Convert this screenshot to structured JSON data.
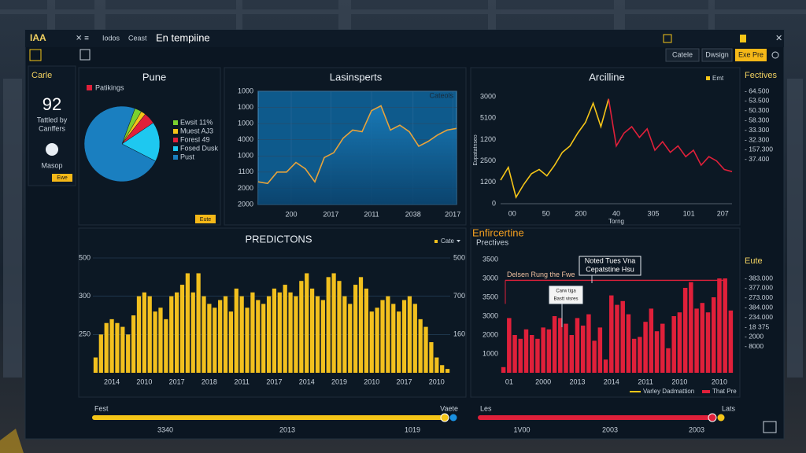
{
  "window": {
    "app": "IAA",
    "menu": [
      "Iodos",
      "Ceast"
    ],
    "title": "En tempiine",
    "toolbar": [
      "Catele",
      "Dwsign"
    ],
    "action": "Exe Pre"
  },
  "sidebar": {
    "title": "Carle",
    "value": "92",
    "caption": [
      "Tattled by",
      "Canffers"
    ],
    "button_label": "Masop",
    "tag": "Ewe"
  },
  "chart_data": [
    {
      "type": "pie",
      "title": "Pune",
      "legend_title": "Patikings",
      "tag": "Eute",
      "categories": [
        "Ewsit 11%",
        "Muest AJ3",
        "Foresl 49",
        "Fosed Dusk",
        "Pust"
      ],
      "values": [
        3,
        2,
        5,
        17,
        73
      ],
      "colors": [
        "#7bd12e",
        "#f5c518",
        "#e0203a",
        "#1ec8f0",
        "#1a7fc0"
      ]
    },
    {
      "type": "line",
      "title": "Lasinsperts",
      "legend": "Cateols",
      "area": true,
      "grid": true,
      "plot_color": "#0e5a8c",
      "x": [
        0,
        1,
        2,
        3,
        4,
        5,
        6,
        7,
        8,
        9,
        10,
        11,
        12,
        13,
        14,
        15,
        16,
        17,
        18,
        19,
        20,
        21
      ],
      "series": [
        {
          "color": "#e8a33a",
          "values": [
            1.4,
            1.3,
            2.0,
            2.0,
            2.6,
            2.2,
            1.4,
            2.9,
            3.2,
            4.1,
            4.6,
            4.5,
            5.8,
            6.1,
            4.6,
            4.9,
            4.5,
            3.6,
            3.9,
            4.3,
            4.6,
            4.7
          ]
        }
      ],
      "xlim": [
        0,
        21
      ],
      "xticks": [
        {
          "value": 3.5,
          "label": "200"
        },
        {
          "value": 7.7,
          "label": "2017"
        },
        {
          "value": 12,
          "label": "2011"
        },
        {
          "value": 16.4,
          "label": "2038"
        },
        {
          "value": 20.6,
          "label": "2017"
        }
      ],
      "ylim": [
        0,
        7
      ],
      "yticks": [
        {
          "value": 7,
          "label": "1000"
        },
        {
          "value": 6,
          "label": "1000"
        },
        {
          "value": 5,
          "label": "1000"
        },
        {
          "value": 4,
          "label": "4000"
        },
        {
          "value": 3,
          "label": "1000"
        },
        {
          "value": 2,
          "label": "1100"
        },
        {
          "value": 1,
          "label": "2000"
        },
        {
          "value": 0,
          "label": "2000"
        }
      ]
    },
    {
      "type": "line",
      "title": "Arcilline",
      "x_label": "Torng",
      "y_label": "Eupatatnseo",
      "grid": false,
      "x": [
        0,
        1,
        2,
        3,
        4,
        5,
        6,
        7,
        8,
        9,
        10,
        11,
        12,
        13,
        14,
        15,
        16,
        17,
        18,
        19,
        20,
        21,
        22,
        23,
        24,
        25,
        26,
        27,
        28,
        29,
        30
      ],
      "series": [
        {
          "name": "Emt",
          "color": "#f5c518",
          "values": [
            1.1,
            1.7,
            0.3,
            0.9,
            1.4,
            1.6,
            1.3,
            1.8,
            2.4,
            2.7,
            3.3,
            3.8,
            4.7,
            3.6,
            4.9,
            null,
            null,
            null,
            null,
            null,
            null,
            null,
            null,
            null,
            null,
            null,
            null,
            null,
            null,
            null,
            null
          ]
        },
        {
          "color": "#e0203a",
          "values": [
            null,
            null,
            null,
            null,
            null,
            null,
            null,
            null,
            null,
            null,
            null,
            null,
            null,
            null,
            4.9,
            2.7,
            3.3,
            3.6,
            3.1,
            3.5,
            2.5,
            2.9,
            2.4,
            2.7,
            2.2,
            2.5,
            1.8,
            2.2,
            2.0,
            1.6,
            1.5
          ]
        }
      ],
      "xlim": [
        0,
        30
      ],
      "xticks": [
        {
          "value": 1.5,
          "label": "00"
        },
        {
          "value": 5.9,
          "label": "50"
        },
        {
          "value": 10.4,
          "label": "200"
        },
        {
          "value": 15,
          "label": "40"
        },
        {
          "value": 19.8,
          "label": "305"
        },
        {
          "value": 24.4,
          "label": "101"
        },
        {
          "value": 28.8,
          "label": "207"
        }
      ],
      "ylim": [
        0,
        5
      ],
      "yticks": [
        {
          "value": 5,
          "label": "3000"
        },
        {
          "value": 4,
          "label": "5100"
        },
        {
          "value": 3,
          "label": "1200"
        },
        {
          "value": 2,
          "label": "2500"
        },
        {
          "value": 1,
          "label": "1200"
        },
        0
      ]
    },
    {
      "type": "bar",
      "title": "PREDICTONS",
      "grid": true,
      "categories": [
        null,
        null,
        null,
        "2014",
        null,
        null,
        null,
        null,
        null,
        "2010",
        null,
        null,
        null,
        null,
        null,
        "2017",
        null,
        null,
        null,
        null,
        null,
        "2018",
        null,
        null,
        null,
        null,
        null,
        "2011",
        null,
        null,
        null,
        null,
        null,
        "2017",
        null,
        null,
        null,
        null,
        null,
        "2014",
        null,
        null,
        null,
        null,
        null,
        "2019",
        null,
        null,
        null,
        null,
        null,
        "2010",
        null,
        null,
        null,
        null,
        null,
        "2017",
        null,
        null,
        null,
        null,
        null,
        "2010",
        null,
        null
      ],
      "series": [
        {
          "name": "Cate",
          "color": "#f2c01e",
          "values": [
            0.4,
            1.0,
            1.3,
            1.4,
            1.3,
            1.2,
            1.0,
            1.5,
            2.0,
            2.1,
            2.0,
            1.6,
            1.7,
            1.4,
            2.0,
            2.1,
            2.3,
            2.6,
            2.1,
            2.6,
            2.0,
            1.8,
            1.7,
            1.9,
            2.0,
            1.6,
            2.2,
            2.0,
            1.7,
            2.1,
            1.9,
            1.8,
            2.0,
            2.2,
            2.1,
            2.3,
            2.1,
            2.0,
            2.4,
            2.6,
            2.2,
            2.0,
            1.9,
            2.5,
            2.6,
            2.4,
            2.0,
            1.8,
            2.3,
            2.5,
            2.2,
            1.6,
            1.7,
            1.9,
            2.0,
            1.8,
            1.6,
            1.9,
            2.0,
            1.8,
            1.4,
            1.2,
            0.8,
            0.4,
            0.2,
            0.1
          ]
        }
      ],
      "ylim": [
        0,
        3
      ],
      "yticks": [
        {
          "value": 3,
          "label": "500"
        },
        {
          "value": 2,
          "label": "300"
        },
        {
          "value": 1,
          "label": "250"
        }
      ],
      "y2lim": [
        0,
        3
      ],
      "y2ticks": [
        {
          "value": 3,
          "label": "500"
        },
        {
          "value": 2,
          "label": "700"
        },
        {
          "value": 1,
          "label": "160"
        }
      ]
    },
    {
      "type": "bar",
      "title": "Enfircertine",
      "subtitle": "Prectives",
      "grid": false,
      "categories": [
        null,
        "01",
        null,
        null,
        null,
        null,
        null,
        "2000",
        null,
        null,
        null,
        null,
        null,
        "2013",
        null,
        null,
        null,
        null,
        null,
        "2014",
        null,
        null,
        null,
        null,
        null,
        "2011",
        null,
        null,
        null,
        null,
        null,
        "2010",
        null,
        null,
        null,
        null,
        null,
        null,
        "2010",
        null,
        null
      ],
      "series": [
        {
          "name": "That Pre",
          "color": "#e0203a",
          "values": [
            0.3,
            2.9,
            2.0,
            1.8,
            2.3,
            2.0,
            1.8,
            2.4,
            2.3,
            3.0,
            2.9,
            2.6,
            2.0,
            2.9,
            2.5,
            3.1,
            1.7,
            2.4,
            0.7,
            4.1,
            3.6,
            3.8,
            3.1,
            1.8,
            1.9,
            2.7,
            3.4,
            2.2,
            2.6,
            1.3,
            3.0,
            3.2,
            4.5,
            4.8,
            3.4,
            3.7,
            3.2,
            4.0,
            5.0,
            5.0,
            3.3
          ]
        }
      ],
      "line_legend": {
        "name": "Varley Dadmattion",
        "color": "#f5c518"
      },
      "reference": {
        "value": 4.9,
        "label": "Delsen Rung the Fwe",
        "color": "#e0203a"
      },
      "annotations": [
        [
          "Noted Tues Vna",
          "Cepatstine Hsu"
        ],
        [
          "Carw tiga",
          "Bastt visres"
        ]
      ],
      "ylim": [
        0,
        6
      ],
      "yticks": [
        {
          "value": 6,
          "label": "3500"
        },
        {
          "value": 5,
          "label": "3000"
        },
        {
          "value": 4,
          "label": "3500"
        },
        {
          "value": 3,
          "label": "3000"
        },
        {
          "value": 2,
          "label": "2000"
        },
        {
          "value": 1,
          "label": "1000"
        }
      ]
    }
  ],
  "side_lists": [
    {
      "title": "Fectives",
      "items": [
        "- 64.500",
        "- 53.500",
        "- 50.300",
        "- 58.300",
        "- 33.300",
        "- 32.300",
        "- 157.300",
        "- 37.400"
      ]
    },
    {
      "title": "Eute",
      "items": [
        "- 383.000",
        "- 377.000",
        "- 273.000",
        "- 384.000",
        "- 234.000",
        "- 18 375",
        "- 2000",
        "- 8000"
      ]
    }
  ],
  "sliders": [
    {
      "start": "Fest",
      "end": "Vaete",
      "ticks": [
        "3340",
        "2013",
        "1019"
      ],
      "color": "#f5c518"
    },
    {
      "start": "Les",
      "end": "Lats",
      "ticks": [
        "1V00",
        "2003",
        "2003"
      ],
      "color": "#e0203a"
    }
  ]
}
